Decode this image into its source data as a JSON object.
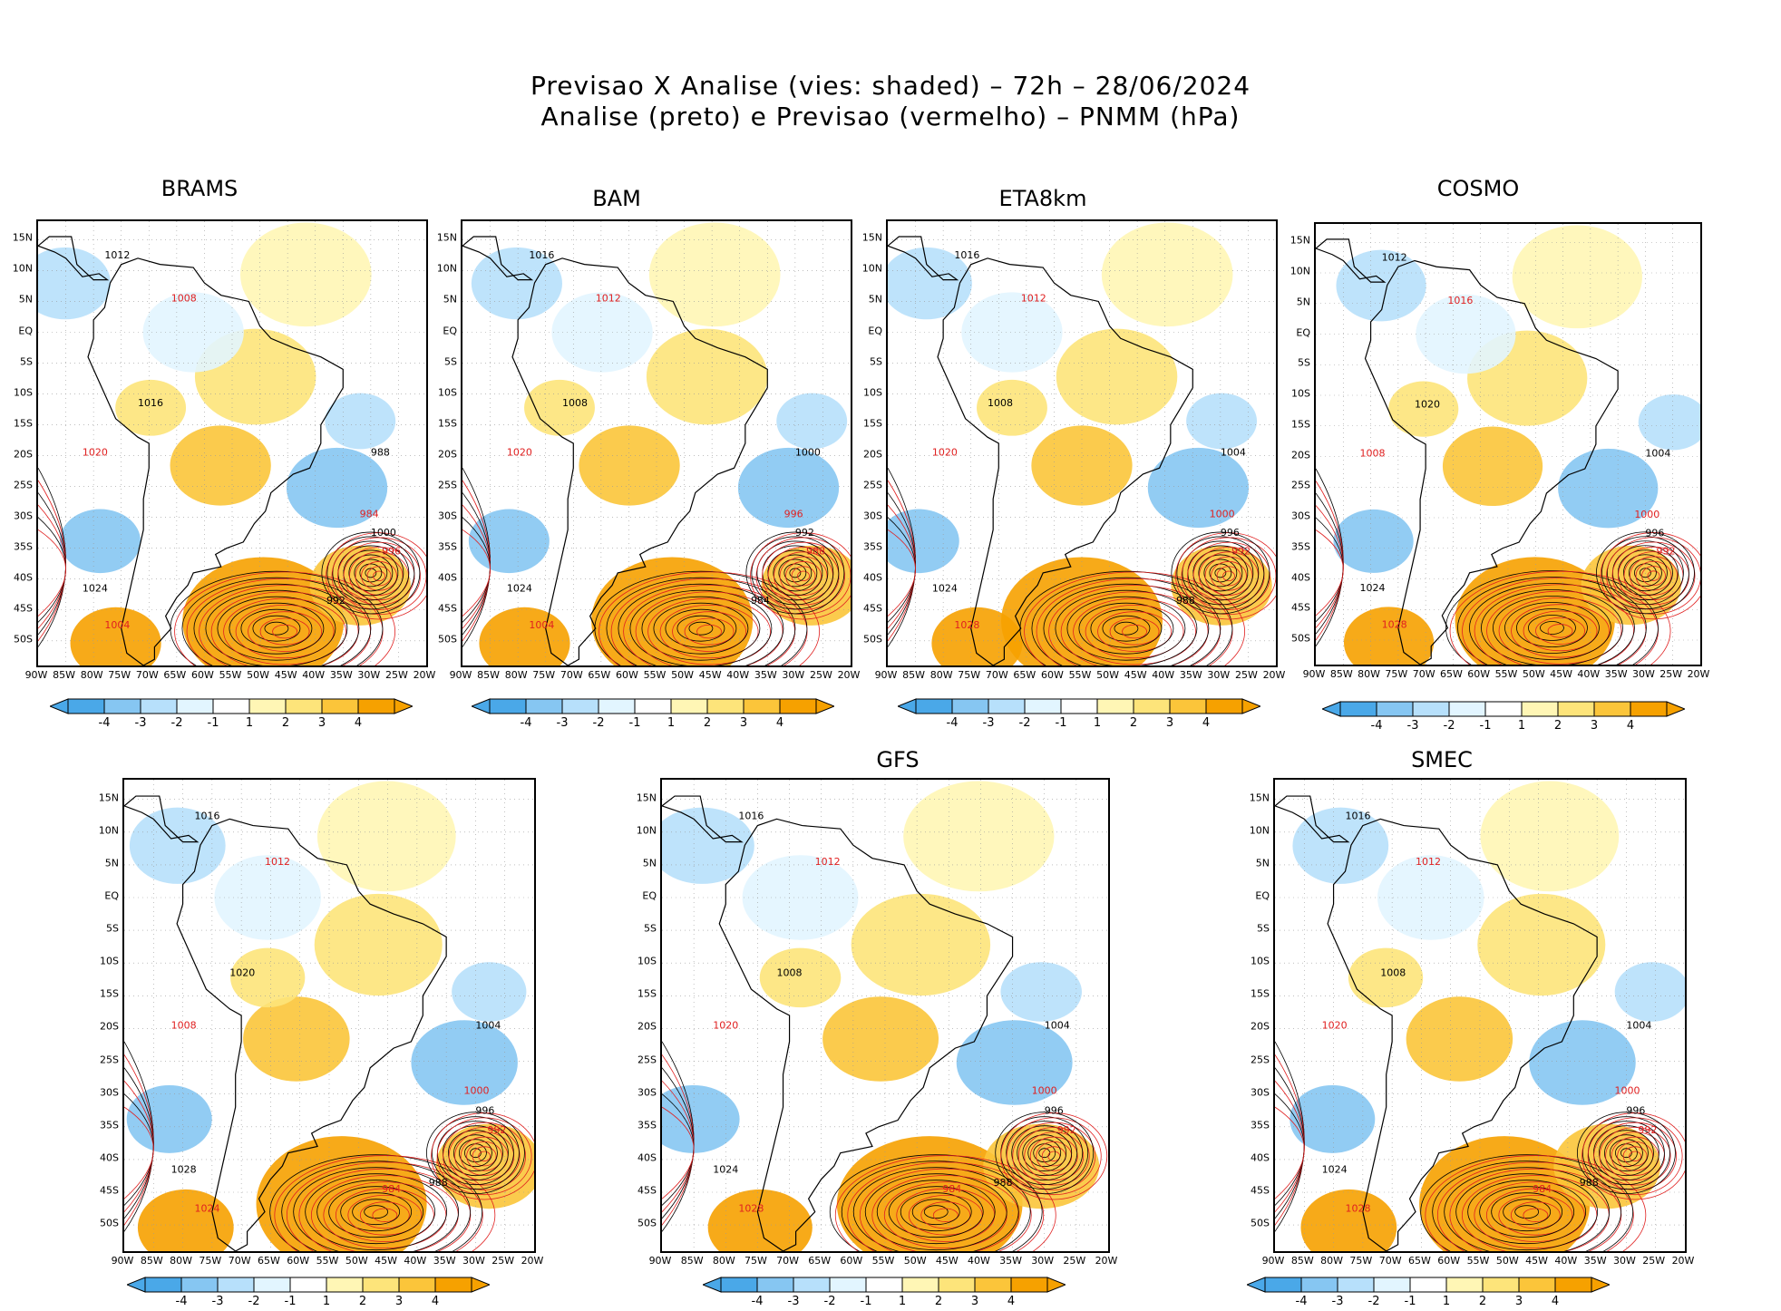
{
  "title": {
    "line1": "Previsao X Analise (vies: shaded) – 72h – 28/06/2024",
    "line2": "Analise (preto) e Previsao (vermelho) – PNMM (hPa)"
  },
  "colors": {
    "neg4": "#4aa8e8",
    "neg3": "#86c6f2",
    "neg2": "#b7e0fb",
    "neg1": "#e2f5ff",
    "zero": "#ffffff",
    "pos1": "#fff6b5",
    "pos2": "#fde47a",
    "pos3": "#fbc53a",
    "pos4": "#f6a100",
    "analysis_contour": "#000000",
    "forecast_contour": "#e02020"
  },
  "lat_labels": [
    "15N",
    "10N",
    "5N",
    "EQ",
    "5S",
    "10S",
    "15S",
    "20S",
    "25S",
    "30S",
    "35S",
    "40S",
    "45S",
    "50S"
  ],
  "lon_labels": [
    "90W",
    "85W",
    "80W",
    "75W",
    "70W",
    "65W",
    "60W",
    "55W",
    "50W",
    "45W",
    "40W",
    "35W",
    "30W",
    "25W",
    "20W"
  ],
  "colorbar_ticks": [
    "-4",
    "-3",
    "-2",
    "-1",
    "1",
    "2",
    "3",
    "4"
  ],
  "panels": [
    {
      "id": "brams",
      "label": "BRAMS",
      "contours": [
        "1012",
        "1008",
        "1016",
        "1020",
        "1024",
        "1004",
        "988",
        "984",
        "1000",
        "996",
        "992"
      ]
    },
    {
      "id": "bam",
      "label": "BAM",
      "contours": [
        "1016",
        "1012",
        "1008",
        "1020",
        "1024",
        "1004",
        "1000",
        "996",
        "992",
        "988",
        "984"
      ]
    },
    {
      "id": "eta8km",
      "label": "ETA8km",
      "contours": [
        "1016",
        "1012",
        "1008",
        "1020",
        "1024",
        "1028",
        "1004",
        "1000",
        "996",
        "992",
        "988"
      ]
    },
    {
      "id": "cosmo",
      "label": "COSMO",
      "contours": [
        "1012",
        "1016",
        "1020",
        "1008",
        "1024",
        "1028",
        "1004",
        "1000",
        "996",
        "992"
      ]
    },
    {
      "id": "panel5",
      "label": "",
      "contours": [
        "1016",
        "1012",
        "1020",
        "1008",
        "1028",
        "1024",
        "1004",
        "1000",
        "996",
        "992",
        "988",
        "984"
      ]
    },
    {
      "id": "gfs",
      "label": "GFS",
      "contours": [
        "1016",
        "1012",
        "1008",
        "1020",
        "1024",
        "1028",
        "1004",
        "1000",
        "996",
        "992",
        "988",
        "984"
      ]
    },
    {
      "id": "smec",
      "label": "SMEC",
      "contours": [
        "1016",
        "1012",
        "1008",
        "1020",
        "1024",
        "1028",
        "1004",
        "1000",
        "996",
        "992",
        "988",
        "984"
      ]
    }
  ]
}
